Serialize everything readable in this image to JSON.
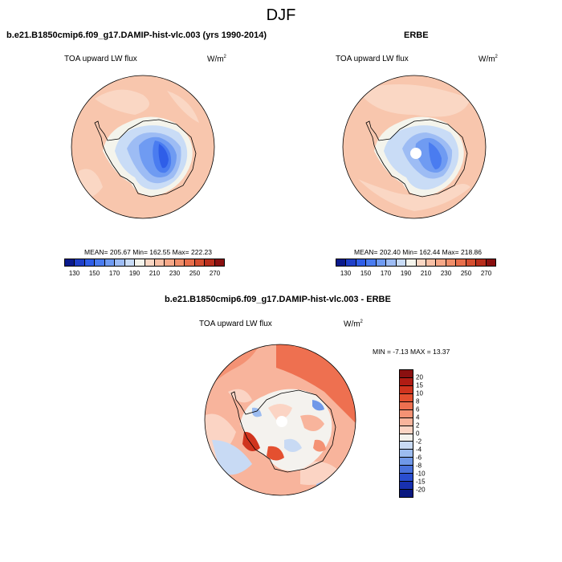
{
  "figure": {
    "title": "DJF"
  },
  "panels": [
    {
      "title": "b.e21.B1850cmip6.f09_g17.DAMIP-hist-vlc.003 (yrs 1990-2014)",
      "variable": "TOA upward LW flux",
      "units_base": "W/m",
      "units_exp": "2",
      "stats": "MEAN= 205.67  Min= 162.55  Max= 222.23"
    },
    {
      "title": "ERBE",
      "variable": "TOA upward LW flux",
      "units_base": "W/m",
      "units_exp": "2",
      "stats": "MEAN= 202.40  Min= 162.44  Max= 218.86"
    },
    {
      "title": "b.e21.B1850cmip6.f09_g17.DAMIP-hist-vlc.003 - ERBE",
      "variable": "TOA upward LW flux",
      "units_base": "W/m",
      "units_exp": "2",
      "stats": "MIN =  -7.13 MAX =  13.37"
    }
  ],
  "colorbar_abs": {
    "labels": [
      "130",
      "150",
      "170",
      "190",
      "210",
      "230",
      "250",
      "270"
    ],
    "colors": [
      "#0a1a8c",
      "#1f3fc8",
      "#2f5ee8",
      "#4a7cf0",
      "#6f9bf2",
      "#9dbcf4",
      "#c9dcf6",
      "#f4f4ec",
      "#fad7c4",
      "#f8c0a6",
      "#f6a888",
      "#f08e6a",
      "#e86f4c",
      "#d44e30",
      "#b82e1c",
      "#8a1010"
    ]
  },
  "colorbar_diff": {
    "labels": [
      "20",
      "15",
      "10",
      "8",
      "6",
      "4",
      "2",
      "0",
      "-2",
      "-4",
      "-6",
      "-8",
      "-10",
      "-15",
      "-20"
    ],
    "colors": [
      "#8a1010",
      "#b01c14",
      "#d0341e",
      "#e45030",
      "#ee7050",
      "#f49274",
      "#f8b49c",
      "#fbd4c4",
      "#f4f2ee",
      "#c8daf4",
      "#9cbcf0",
      "#7098e8",
      "#4a72dc",
      "#2a4ed0",
      "#1830b0",
      "#0a1880"
    ]
  }
}
